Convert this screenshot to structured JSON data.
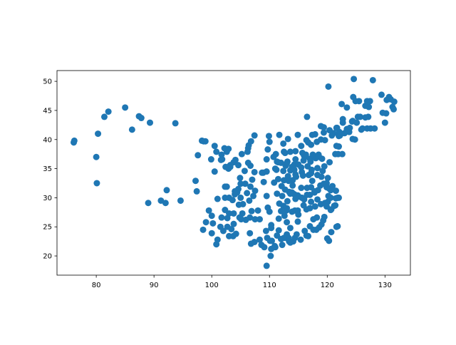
{
  "chart_data": {
    "type": "scatter",
    "title": "",
    "xlabel": "",
    "ylabel": "",
    "xlim": [
      73.2,
      134.4
    ],
    "ylim": [
      16.7,
      51.85
    ],
    "xticks": [
      80,
      90,
      100,
      110,
      120,
      130
    ],
    "yticks": [
      20,
      25,
      30,
      35,
      40,
      45,
      50
    ],
    "grid": false,
    "color": "#1f77b4",
    "points": [
      [
        76.1,
        39.5
      ],
      [
        76.2,
        39.8
      ],
      [
        80.3,
        41.0
      ],
      [
        80.0,
        37.0
      ],
      [
        80.1,
        32.5
      ],
      [
        81.4,
        43.9
      ],
      [
        82.1,
        44.8
      ],
      [
        85.0,
        45.5
      ],
      [
        86.2,
        41.7
      ],
      [
        87.4,
        44.0
      ],
      [
        87.8,
        43.7
      ],
      [
        89.3,
        42.9
      ],
      [
        93.7,
        42.8
      ],
      [
        98.6,
        39.7
      ],
      [
        98.9,
        39.7
      ],
      [
        97.6,
        37.3
      ],
      [
        97.2,
        32.9
      ],
      [
        97.4,
        31.1
      ],
      [
        92.2,
        31.3
      ],
      [
        89.0,
        29.1
      ],
      [
        91.2,
        29.5
      ],
      [
        92.0,
        29.1
      ],
      [
        94.6,
        29.5
      ],
      [
        124.6,
        50.4
      ],
      [
        127.9,
        50.2
      ],
      [
        120.2,
        49.1
      ],
      [
        129.4,
        47.7
      ],
      [
        130.7,
        47.3
      ],
      [
        131.0,
        46.9
      ],
      [
        131.6,
        46.5
      ],
      [
        131.3,
        45.6
      ],
      [
        131.5,
        45.2
      ],
      [
        130.2,
        44.5
      ],
      [
        130.0,
        42.9
      ],
      [
        124.5,
        47.3
      ],
      [
        125.5,
        46.6
      ],
      [
        122.5,
        46.1
      ],
      [
        123.4,
        45.5
      ],
      [
        127.4,
        46.6
      ],
      [
        127.2,
        45.6
      ],
      [
        127.1,
        43.9
      ],
      [
        122.7,
        43.5
      ],
      [
        116.5,
        43.9
      ],
      [
        119.4,
        42.1
      ],
      [
        124.8,
        40.0
      ],
      [
        126.9,
        41.9
      ],
      [
        122.0,
        38.8
      ],
      [
        121.9,
        37.5
      ],
      [
        122.6,
        37.5
      ],
      [
        98.5,
        24.5
      ],
      [
        99.0,
        25.8
      ],
      [
        99.5,
        27.8
      ],
      [
        100.0,
        26.9
      ],
      [
        100.2,
        25.6
      ],
      [
        100.0,
        23.9
      ],
      [
        100.8,
        22.0
      ],
      [
        101.0,
        22.8
      ],
      [
        101.5,
        25.0
      ],
      [
        102.0,
        24.3
      ],
      [
        102.7,
        25.0
      ],
      [
        103.0,
        23.4
      ],
      [
        103.7,
        23.4
      ],
      [
        103.4,
        24.6
      ],
      [
        103.8,
        25.5
      ],
      [
        104.2,
        23.8
      ],
      [
        102.7,
        26.5
      ],
      [
        103.0,
        27.3
      ],
      [
        102.3,
        27.9
      ],
      [
        101.7,
        26.6
      ],
      [
        101.0,
        29.8
      ],
      [
        102.3,
        30.0
      ],
      [
        102.3,
        31.9
      ],
      [
        103.0,
        30.0
      ],
      [
        103.6,
        29.6
      ],
      [
        104.0,
        30.6
      ],
      [
        104.4,
        30.9
      ],
      [
        104.6,
        31.5
      ],
      [
        104.0,
        31.1
      ],
      [
        105.0,
        30.0
      ],
      [
        105.4,
        28.9
      ],
      [
        104.7,
        28.8
      ],
      [
        105.0,
        32.4
      ],
      [
        105.8,
        32.4
      ],
      [
        106.1,
        30.8
      ],
      [
        106.5,
        29.5
      ],
      [
        106.7,
        31.9
      ],
      [
        107.5,
        31.2
      ],
      [
        107.2,
        30.3
      ],
      [
        106.6,
        26.6
      ],
      [
        106.9,
        27.7
      ],
      [
        105.9,
        26.2
      ],
      [
        105.3,
        27.3
      ],
      [
        104.8,
        26.6
      ],
      [
        107.5,
        26.3
      ],
      [
        108.0,
        27.8
      ],
      [
        108.3,
        26.3
      ],
      [
        108.3,
        22.8
      ],
      [
        109.4,
        24.3
      ],
      [
        110.3,
        25.3
      ],
      [
        111.3,
        23.5
      ],
      [
        108.6,
        21.9
      ],
      [
        109.1,
        21.5
      ],
      [
        110.2,
        20.0
      ],
      [
        110.3,
        21.2
      ],
      [
        109.5,
        18.3
      ],
      [
        110.4,
        22.6
      ],
      [
        110.9,
        21.7
      ],
      [
        109.6,
        23.1
      ],
      [
        107.4,
        22.4
      ],
      [
        106.6,
        23.9
      ],
      [
        106.8,
        22.1
      ],
      [
        99.9,
        36.6
      ],
      [
        101.8,
        36.6
      ],
      [
        100.5,
        38.9
      ],
      [
        100.5,
        34.5
      ],
      [
        102.6,
        37.9
      ],
      [
        102.9,
        38.4
      ],
      [
        103.8,
        36.1
      ],
      [
        102.9,
        35.0
      ],
      [
        103.2,
        35.6
      ],
      [
        104.6,
        35.6
      ],
      [
        105.7,
        34.6
      ],
      [
        106.7,
        35.5
      ],
      [
        106.3,
        38.5
      ],
      [
        106.4,
        39.0
      ],
      [
        106.2,
        37.9
      ],
      [
        106.3,
        36.0
      ],
      [
        107.4,
        34.4
      ],
      [
        108.9,
        34.3
      ],
      [
        109.5,
        34.5
      ],
      [
        108.7,
        34.3
      ],
      [
        109.0,
        32.7
      ],
      [
        107.0,
        33.1
      ],
      [
        109.5,
        36.6
      ],
      [
        109.7,
        38.3
      ],
      [
        109.9,
        40.6
      ],
      [
        110.0,
        39.6
      ],
      [
        111.7,
        40.8
      ],
      [
        107.4,
        40.7
      ],
      [
        106.8,
        39.7
      ],
      [
        102.2,
        38.5
      ],
      [
        98.3,
        39.8
      ],
      [
        103.2,
        35.3
      ],
      [
        104.9,
        33.4
      ],
      [
        101.6,
        36.5
      ],
      [
        102.4,
        35.3
      ],
      [
        101.7,
        37.4
      ],
      [
        100.8,
        37.9
      ],
      [
        104.1,
        36.5
      ],
      [
        105.2,
        37.5
      ],
      [
        102.6,
        31.9
      ],
      [
        103.8,
        27.3
      ],
      [
        105.1,
        26.3
      ],
      [
        111.0,
        35.0
      ],
      [
        111.5,
        36.1
      ],
      [
        112.5,
        37.9
      ],
      [
        112.7,
        37.7
      ],
      [
        113.6,
        37.9
      ],
      [
        113.1,
        36.2
      ],
      [
        112.8,
        35.5
      ],
      [
        113.2,
        40.1
      ],
      [
        112.4,
        39.3
      ],
      [
        111.1,
        37.5
      ],
      [
        114.5,
        38.0
      ],
      [
        114.5,
        36.6
      ],
      [
        115.5,
        38.9
      ],
      [
        115.7,
        37.7
      ],
      [
        114.9,
        40.8
      ],
      [
        116.4,
        39.9
      ],
      [
        117.2,
        39.1
      ],
      [
        118.2,
        39.6
      ],
      [
        119.6,
        39.9
      ],
      [
        118.9,
        40.0
      ],
      [
        116.7,
        39.5
      ],
      [
        117.9,
        40.9
      ],
      [
        116.3,
        37.4
      ],
      [
        117.0,
        36.7
      ],
      [
        118.0,
        36.8
      ],
      [
        119.1,
        36.7
      ],
      [
        120.4,
        36.1
      ],
      [
        121.4,
        37.5
      ],
      [
        117.1,
        36.2
      ],
      [
        116.6,
        35.4
      ],
      [
        117.3,
        34.8
      ],
      [
        118.3,
        35.1
      ],
      [
        119.5,
        35.4
      ],
      [
        115.5,
        35.2
      ],
      [
        115.9,
        36.4
      ],
      [
        117.5,
        37.4
      ],
      [
        118.5,
        37.4
      ],
      [
        116.3,
        37.1
      ],
      [
        113.6,
        34.7
      ],
      [
        114.3,
        34.8
      ],
      [
        112.4,
        34.6
      ],
      [
        114.0,
        33.0
      ],
      [
        112.5,
        33.0
      ],
      [
        114.3,
        35.7
      ],
      [
        113.9,
        35.3
      ],
      [
        115.0,
        35.7
      ],
      [
        114.6,
        33.6
      ],
      [
        114.0,
        32.1
      ],
      [
        111.2,
        34.8
      ],
      [
        113.2,
        33.7
      ],
      [
        115.6,
        34.4
      ],
      [
        115.8,
        33.8
      ],
      [
        116.8,
        33.9
      ],
      [
        117.2,
        31.8
      ],
      [
        116.5,
        31.7
      ],
      [
        117.4,
        32.9
      ],
      [
        118.3,
        33.9
      ],
      [
        119.0,
        33.6
      ],
      [
        119.2,
        34.6
      ],
      [
        117.2,
        34.2
      ],
      [
        118.8,
        32.1
      ],
      [
        119.4,
        32.4
      ],
      [
        120.3,
        31.6
      ],
      [
        120.6,
        31.3
      ],
      [
        121.5,
        31.2
      ],
      [
        120.9,
        32.0
      ],
      [
        119.9,
        32.5
      ],
      [
        120.1,
        33.4
      ],
      [
        119.9,
        31.8
      ],
      [
        118.4,
        31.3
      ],
      [
        117.8,
        30.9
      ],
      [
        117.0,
        30.5
      ],
      [
        118.3,
        29.7
      ],
      [
        120.2,
        30.3
      ],
      [
        120.6,
        30.0
      ],
      [
        121.5,
        29.9
      ],
      [
        120.1,
        29.3
      ],
      [
        119.6,
        29.1
      ],
      [
        120.7,
        28.0
      ],
      [
        121.4,
        28.7
      ],
      [
        118.9,
        28.9
      ],
      [
        119.9,
        28.5
      ],
      [
        114.3,
        30.6
      ],
      [
        112.2,
        30.3
      ],
      [
        111.3,
        30.7
      ],
      [
        113.9,
        30.9
      ],
      [
        114.9,
        30.4
      ],
      [
        113.4,
        31.0
      ],
      [
        112.1,
        32.0
      ],
      [
        110.8,
        32.6
      ],
      [
        115.0,
        30.2
      ],
      [
        109.5,
        30.3
      ],
      [
        113.0,
        28.2
      ],
      [
        112.9,
        27.8
      ],
      [
        113.1,
        29.4
      ],
      [
        111.7,
        29.0
      ],
      [
        112.6,
        26.9
      ],
      [
        113.0,
        25.8
      ],
      [
        111.6,
        26.4
      ],
      [
        110.0,
        27.6
      ],
      [
        112.0,
        27.7
      ],
      [
        109.7,
        28.3
      ],
      [
        112.4,
        28.6
      ],
      [
        115.9,
        28.7
      ],
      [
        116.0,
        29.7
      ],
      [
        117.2,
        29.3
      ],
      [
        117.0,
        28.2
      ],
      [
        114.9,
        27.8
      ],
      [
        114.4,
        27.8
      ],
      [
        115.0,
        27.1
      ],
      [
        114.9,
        25.9
      ],
      [
        116.4,
        28.0
      ],
      [
        117.9,
        28.5
      ],
      [
        113.9,
        27.6
      ],
      [
        119.3,
        26.1
      ],
      [
        118.6,
        24.9
      ],
      [
        118.1,
        24.5
      ],
      [
        117.6,
        24.5
      ],
      [
        117.0,
        25.1
      ],
      [
        118.2,
        26.6
      ],
      [
        119.0,
        25.4
      ],
      [
        119.5,
        26.7
      ],
      [
        117.6,
        26.3
      ],
      [
        113.3,
        23.1
      ],
      [
        114.1,
        22.5
      ],
      [
        113.6,
        22.3
      ],
      [
        113.1,
        23.0
      ],
      [
        113.4,
        22.5
      ],
      [
        114.4,
        23.1
      ],
      [
        114.7,
        23.7
      ],
      [
        116.7,
        23.4
      ],
      [
        116.1,
        24.3
      ],
      [
        112.5,
        23.1
      ],
      [
        113.6,
        24.8
      ],
      [
        112.0,
        22.9
      ],
      [
        111.0,
        21.5
      ],
      [
        112.2,
        21.9
      ],
      [
        113.0,
        23.7
      ],
      [
        115.4,
        22.8
      ],
      [
        116.4,
        23.5
      ],
      [
        110.1,
        22.6
      ],
      [
        111.6,
        24.4
      ],
      [
        110.3,
        24.8
      ],
      [
        122.0,
        30.0
      ],
      [
        121.8,
        30.0
      ],
      [
        121.2,
        28.6
      ],
      [
        120.6,
        27.9
      ],
      [
        121.6,
        25.0
      ],
      [
        121.8,
        25.1
      ],
      [
        120.3,
        22.6
      ],
      [
        120.0,
        23.0
      ],
      [
        120.7,
        24.1
      ],
      [
        116.0,
        37.2
      ],
      [
        118.6,
        37.0
      ],
      [
        117.8,
        31.1
      ],
      [
        115.5,
        31.7
      ],
      [
        116.5,
        30.5
      ],
      [
        111.3,
        36.2
      ],
      [
        110.7,
        37.0
      ],
      [
        113.0,
        35.9
      ],
      [
        112.0,
        36.0
      ],
      [
        114.5,
        34.0
      ],
      [
        115.6,
        30.0
      ],
      [
        114.5,
        29.8
      ],
      [
        112.7,
        31.4
      ],
      [
        113.6,
        30.7
      ],
      [
        111.5,
        33.2
      ],
      [
        113.3,
        32.9
      ],
      [
        117.4,
        40.8
      ],
      [
        119.4,
        41.2
      ],
      [
        118.9,
        42.3
      ],
      [
        121.1,
        41.1
      ],
      [
        121.6,
        38.9
      ],
      [
        122.0,
        40.6
      ],
      [
        123.4,
        41.8
      ],
      [
        123.0,
        41.1
      ],
      [
        122.1,
        41.3
      ],
      [
        120.4,
        41.6
      ],
      [
        121.6,
        42.0
      ],
      [
        123.8,
        41.3
      ],
      [
        124.4,
        40.1
      ],
      [
        125.9,
        41.7
      ],
      [
        125.3,
        43.9
      ],
      [
        124.4,
        43.2
      ],
      [
        126.6,
        43.8
      ],
      [
        122.2,
        40.7
      ],
      [
        126.6,
        45.8
      ],
      [
        124.9,
        46.6
      ],
      [
        126.9,
        46.6
      ],
      [
        129.6,
        44.6
      ],
      [
        130.3,
        46.8
      ],
      [
        123.9,
        42.0
      ],
      [
        121.7,
        42.0
      ],
      [
        120.8,
        40.7
      ],
      [
        122.7,
        42.9
      ],
      [
        124.3,
        43.1
      ],
      [
        125.1,
        42.9
      ],
      [
        126.1,
        41.9
      ],
      [
        127.5,
        41.9
      ],
      [
        128.2,
        41.9
      ],
      [
        125.7,
        43.9
      ],
      [
        122.3,
        40.9
      ]
    ]
  }
}
